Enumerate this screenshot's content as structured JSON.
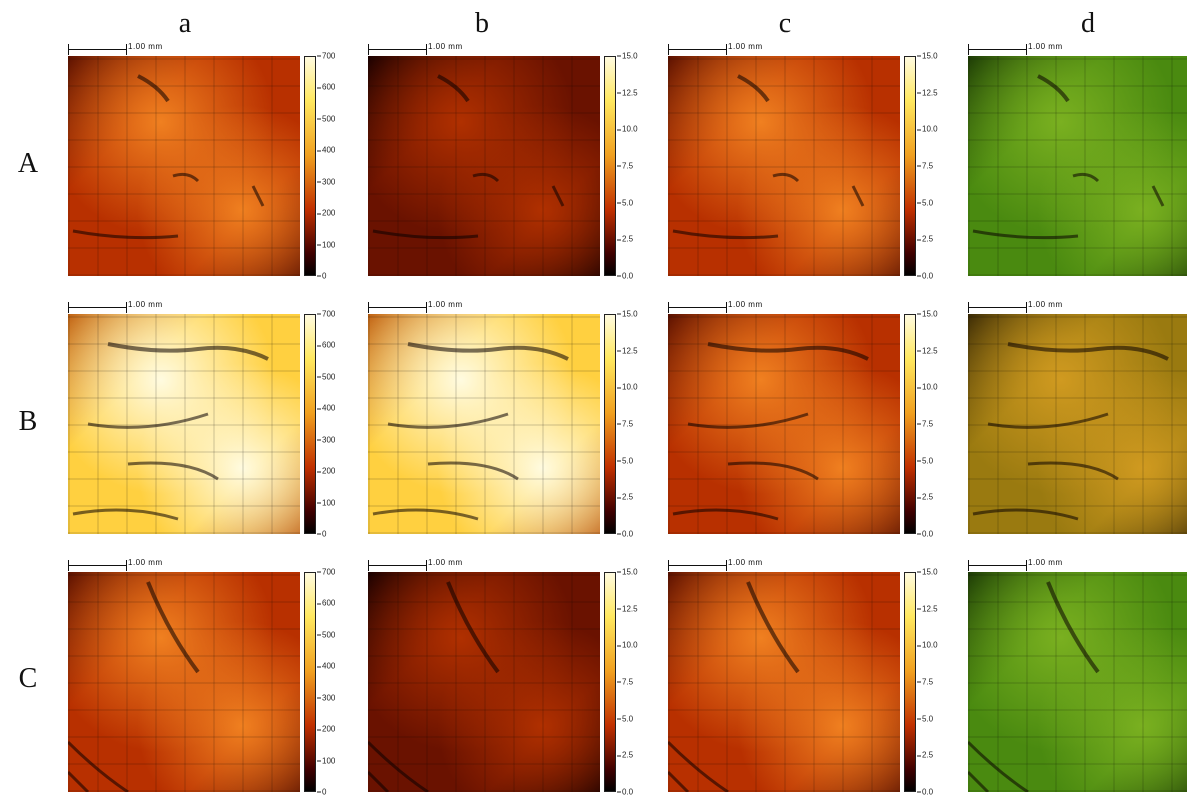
{
  "columns": [
    "a",
    "b",
    "c",
    "d"
  ],
  "rows": [
    "A",
    "B",
    "C"
  ],
  "scale_bar_label": "1.00 mm",
  "colorbars": {
    "a": [
      "700",
      "600",
      "500",
      "400",
      "300",
      "200",
      "100",
      "0"
    ],
    "b": [
      "15.0",
      "12.5",
      "10.0",
      "7.5",
      "5.0",
      "2.5",
      "0.0"
    ],
    "c": [
      "15.0",
      "12.5",
      "10.0",
      "7.5",
      "5.0",
      "2.5",
      "0.0"
    ]
  },
  "colors": {
    "heat_dark": "#1a0000",
    "heat_mid": "#b83000",
    "heat_bright": "#ffd040",
    "heat_white": "#fffbe0",
    "green": "#4a8a10",
    "green_dark": "#1c3a05",
    "olive": "#9a7a10"
  },
  "panels": [
    {
      "row": "A",
      "col": "a",
      "tone": "heat",
      "brightness": 0.55
    },
    {
      "row": "A",
      "col": "b",
      "tone": "heat",
      "brightness": 0.3
    },
    {
      "row": "A",
      "col": "c",
      "tone": "heat",
      "brightness": 0.45
    },
    {
      "row": "A",
      "col": "d",
      "tone": "green",
      "brightness": 0.45
    },
    {
      "row": "B",
      "col": "a",
      "tone": "heat",
      "brightness": 0.75
    },
    {
      "row": "B",
      "col": "b",
      "tone": "heat",
      "brightness": 0.85
    },
    {
      "row": "B",
      "col": "c",
      "tone": "heat",
      "brightness": 0.48
    },
    {
      "row": "B",
      "col": "d",
      "tone": "olive",
      "brightness": 0.55
    },
    {
      "row": "C",
      "col": "a",
      "tone": "heat",
      "brightness": 0.48
    },
    {
      "row": "C",
      "col": "b",
      "tone": "heat",
      "brightness": 0.22
    },
    {
      "row": "C",
      "col": "c",
      "tone": "heat",
      "brightness": 0.45
    },
    {
      "row": "C",
      "col": "d",
      "tone": "green",
      "brightness": 0.5
    }
  ]
}
